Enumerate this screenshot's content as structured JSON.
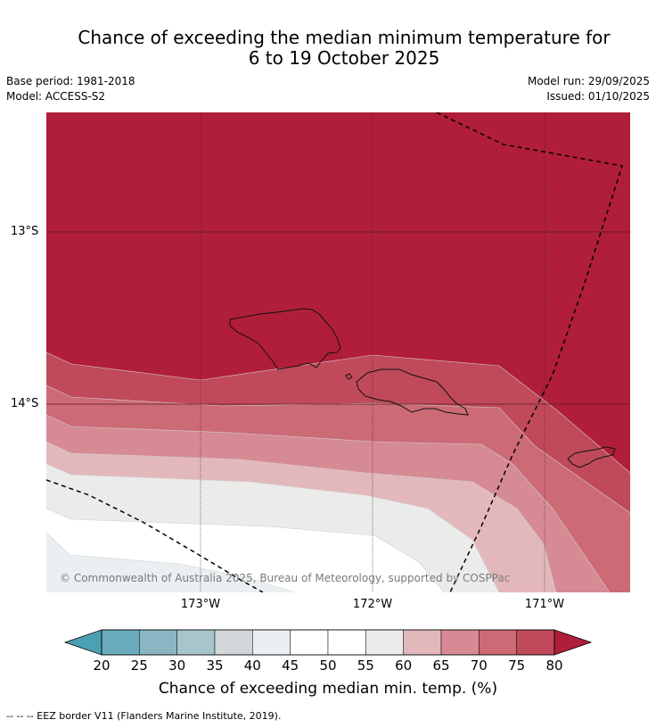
{
  "title_line1": "Chance of exceeding the median minimum temperature for",
  "title_line2": "6 to 19 October 2025",
  "meta": {
    "base_period": "Base period: 1981-2018",
    "model": "Model: ACCESS-S2",
    "model_run": "Model run: 29/09/2025",
    "issued": "Issued: 01/10/2025"
  },
  "map": {
    "lat_labels": [
      "13°S",
      "14°S"
    ],
    "lon_labels": [
      "173°W",
      "172°W",
      "171°W"
    ],
    "copyright": "© Commonwealth of Australia 2025, Bureau of Meteorology, supported by COSPPac",
    "boundary": "EEZ border"
  },
  "colorbar": {
    "ticks": [
      "20",
      "25",
      "30",
      "35",
      "40",
      "45",
      "50",
      "55",
      "60",
      "65",
      "70",
      "75",
      "80"
    ],
    "colors": [
      "#6aacbd",
      "#89b6c2",
      "#a7c6cb",
      "#d2d7d9",
      "#eaf0f2",
      "#ffffff",
      "#ffffff",
      "#ebebea",
      "#e3b8bc",
      "#d68a94",
      "#cc6a76",
      "#c04a5a"
    ],
    "low_color": "#4aa0b4",
    "high_color": "#b01e3a",
    "label": "Chance of exceeding median min. temp. (%)"
  },
  "footnote": "-- -- -- EEZ border V11 (Flanders Marine Institute, 2019)."
}
